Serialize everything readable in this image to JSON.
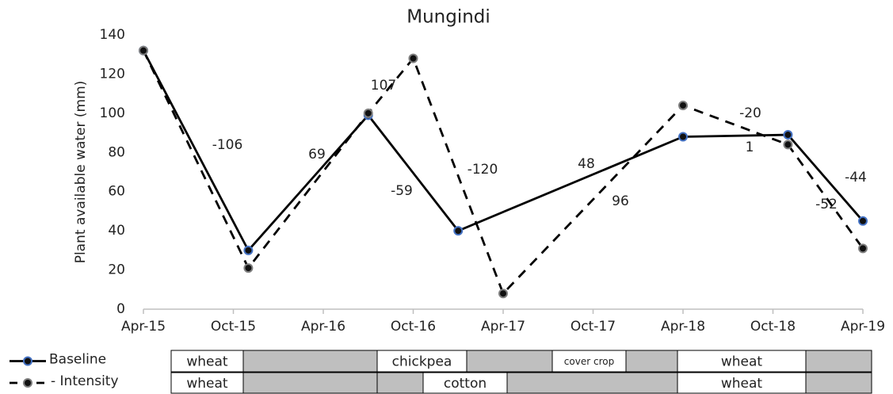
{
  "chart_data": {
    "type": "line",
    "title": "Mungindi",
    "y_label": "Plant available water (mm)",
    "xlim": [
      "Apr-15",
      "Apr-19"
    ],
    "xticks": [
      "Apr-15",
      "Oct-15",
      "Apr-16",
      "Oct-16",
      "Apr-17",
      "Oct-17",
      "Apr-18",
      "Oct-18",
      "Apr-19"
    ],
    "ylim": [
      0,
      140
    ],
    "yticks": [
      0,
      20,
      40,
      60,
      80,
      100,
      120,
      140
    ],
    "grid": false,
    "series": [
      {
        "name": "Baseline",
        "color": "#000000",
        "marker_color": "#4472c4",
        "dash": false,
        "x": [
          "Apr-15",
          "Nov-15",
          "Jul-16",
          "Jan-17",
          "Apr-18",
          "Nov-18",
          "Apr-19"
        ],
        "values": [
          132,
          30,
          99,
          40,
          88,
          89,
          45
        ]
      },
      {
        "name": "- Intensity",
        "color": "#000000",
        "marker_color": "#7f7f7f",
        "dash": true,
        "x": [
          "Apr-15",
          "Nov-15",
          "Jul-16",
          "Oct-16",
          "Apr-17",
          "Apr-18",
          "Nov-18",
          "Apr-19"
        ],
        "values": [
          132,
          21,
          100,
          128,
          8,
          104,
          84,
          31
        ]
      }
    ],
    "annotations": [
      "-106",
      "69",
      "107",
      "-59",
      "-120",
      "48",
      "96",
      "-20",
      "1",
      "-44",
      "-52"
    ],
    "crop_rows": [
      [
        "wheat",
        null,
        "chickpea",
        null,
        "cover crop",
        null,
        "wheat",
        null
      ],
      [
        "wheat",
        null,
        null,
        "cotton",
        null,
        "wheat",
        null
      ]
    ]
  }
}
